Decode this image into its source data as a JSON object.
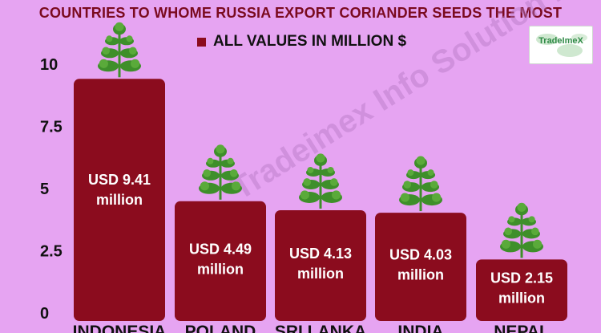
{
  "header": {
    "title": "COUNTRIES TO WHOME RUSSIA EXPORT CORIANDER SEEDS THE MOST",
    "legend_label": "ALL VALUES IN MILLION $"
  },
  "logo": {
    "text": "TradeImeX"
  },
  "watermark": "Tradeimex Info Solution Pvt Ltd",
  "chart_data": {
    "type": "bar",
    "title": "COUNTRIES TO WHOME RUSSIA EXPORT CORIANDER SEEDS THE MOST",
    "xlabel": "",
    "ylabel": "",
    "categories": [
      "INDONESIA",
      "POLAND",
      "SRI LANKA",
      "INDIA",
      "NEPAL"
    ],
    "values": [
      9.41,
      4.49,
      4.13,
      4.03,
      2.15
    ],
    "data_labels": [
      [
        "USD 9.41",
        "million"
      ],
      [
        "USD 4.49",
        "million"
      ],
      [
        "USD 4.13",
        "million"
      ],
      [
        "USD 4.03",
        "million"
      ],
      [
        "USD 2.15",
        "million"
      ]
    ],
    "ylim": [
      0,
      10
    ],
    "yticks": [
      "0",
      "2.5",
      "5",
      "7.5",
      "10"
    ],
    "ytick_values": [
      0,
      2.5,
      5,
      7.5,
      10
    ],
    "legend": [
      "ALL VALUES IN MILLION $"
    ],
    "legend_position": "top-center",
    "grid": false,
    "colors": {
      "bar": "#8b0c1e",
      "background": "#e6a4f2",
      "plant": "#3e8f2a"
    },
    "decorations": {
      "bar_top_icon": "coriander-plant-icon"
    }
  }
}
